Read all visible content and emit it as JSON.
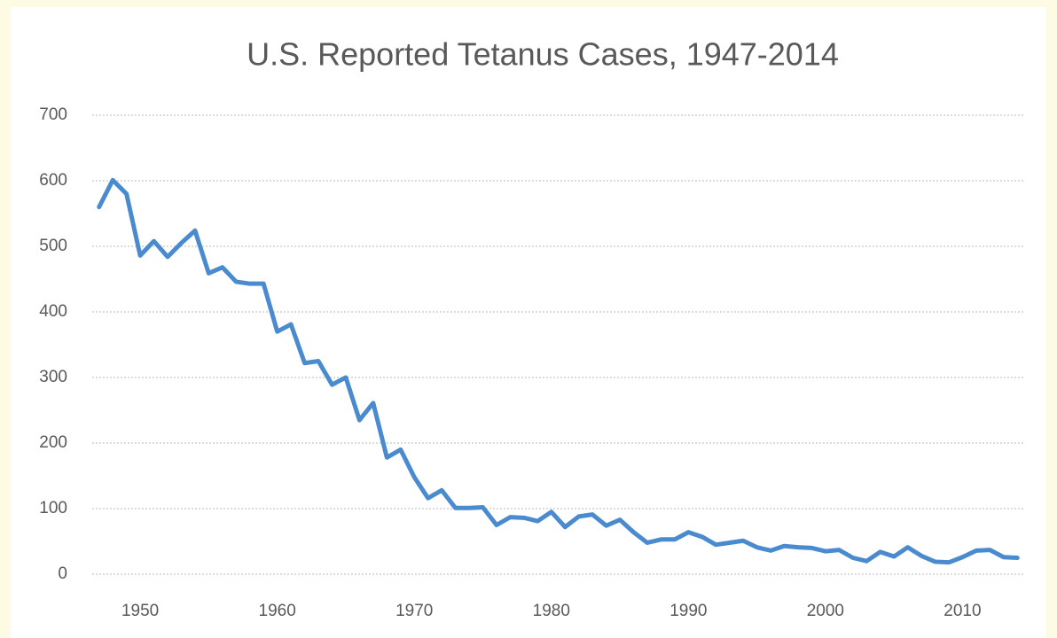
{
  "chart_data": {
    "type": "line",
    "title": "U.S. Reported Tetanus Cases, 1947-2014",
    "x": [
      1947,
      1948,
      1949,
      1950,
      1951,
      1952,
      1953,
      1954,
      1955,
      1956,
      1957,
      1958,
      1959,
      1960,
      1961,
      1962,
      1963,
      1964,
      1965,
      1966,
      1967,
      1968,
      1969,
      1970,
      1971,
      1972,
      1973,
      1974,
      1975,
      1976,
      1977,
      1978,
      1979,
      1980,
      1981,
      1982,
      1983,
      1984,
      1985,
      1986,
      1987,
      1988,
      1989,
      1990,
      1991,
      1992,
      1993,
      1994,
      1995,
      1996,
      1997,
      1998,
      1999,
      2000,
      2001,
      2002,
      2003,
      2004,
      2005,
      2006,
      2007,
      2008,
      2009,
      2010,
      2011,
      2012,
      2013,
      2014
    ],
    "series": [
      {
        "name": "Cases",
        "color": "#4a8bd0",
        "values": [
          560,
          601,
          580,
          486,
          508,
          484,
          505,
          524,
          459,
          468,
          446,
          443,
          443,
          370,
          381,
          322,
          325,
          289,
          300,
          235,
          261,
          178,
          190,
          148,
          116,
          128,
          101,
          101,
          102,
          75,
          87,
          86,
          81,
          95,
          72,
          88,
          91,
          74,
          83,
          64,
          48,
          53,
          53,
          64,
          57,
          45,
          48,
          51,
          41,
          36,
          43,
          41,
          40,
          35,
          37,
          25,
          20,
          34,
          27,
          41,
          28,
          19,
          18,
          26,
          36,
          37,
          26,
          25
        ]
      }
    ],
    "xlim": [
      1946.5,
      2014.5
    ],
    "xticks": [
      1950,
      1960,
      1970,
      1980,
      1990,
      2000,
      2010
    ],
    "ylim": [
      0,
      700
    ],
    "yticks": [
      0,
      100,
      200,
      300,
      400,
      500,
      600,
      700
    ],
    "grid": true
  }
}
